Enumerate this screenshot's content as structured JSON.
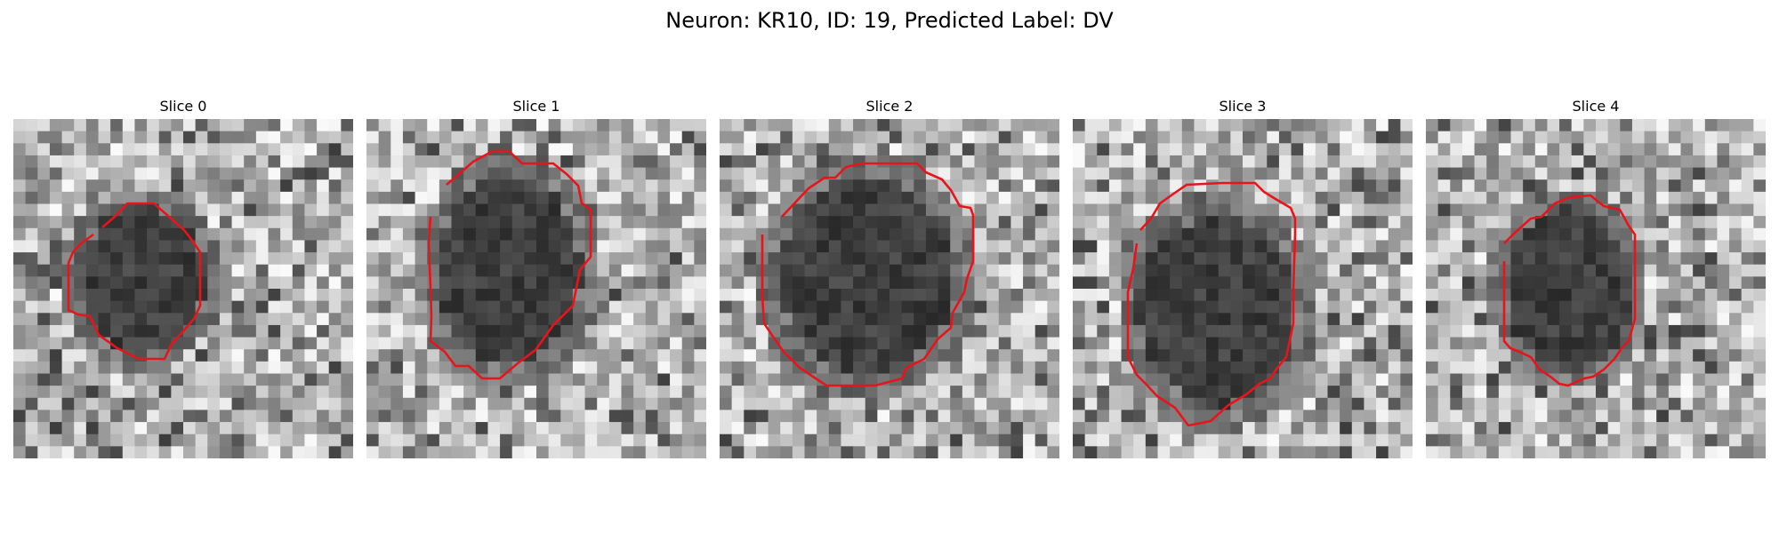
{
  "figure": {
    "title": "Neuron: KR10, ID: 19, Predicted Label: DV"
  },
  "panels": [
    {
      "title": "Slice 0",
      "image": "grayscale-microscopy-slice",
      "outline_color": "#e8141b"
    },
    {
      "title": "Slice 1",
      "image": "grayscale-microscopy-slice",
      "outline_color": "#e8141b"
    },
    {
      "title": "Slice 2",
      "image": "grayscale-microscopy-slice",
      "outline_color": "#e8141b"
    },
    {
      "title": "Slice 3",
      "image": "grayscale-microscopy-slice",
      "outline_color": "#e8141b"
    },
    {
      "title": "Slice 4",
      "image": "grayscale-microscopy-slice",
      "outline_color": "#e8141b"
    }
  ]
}
